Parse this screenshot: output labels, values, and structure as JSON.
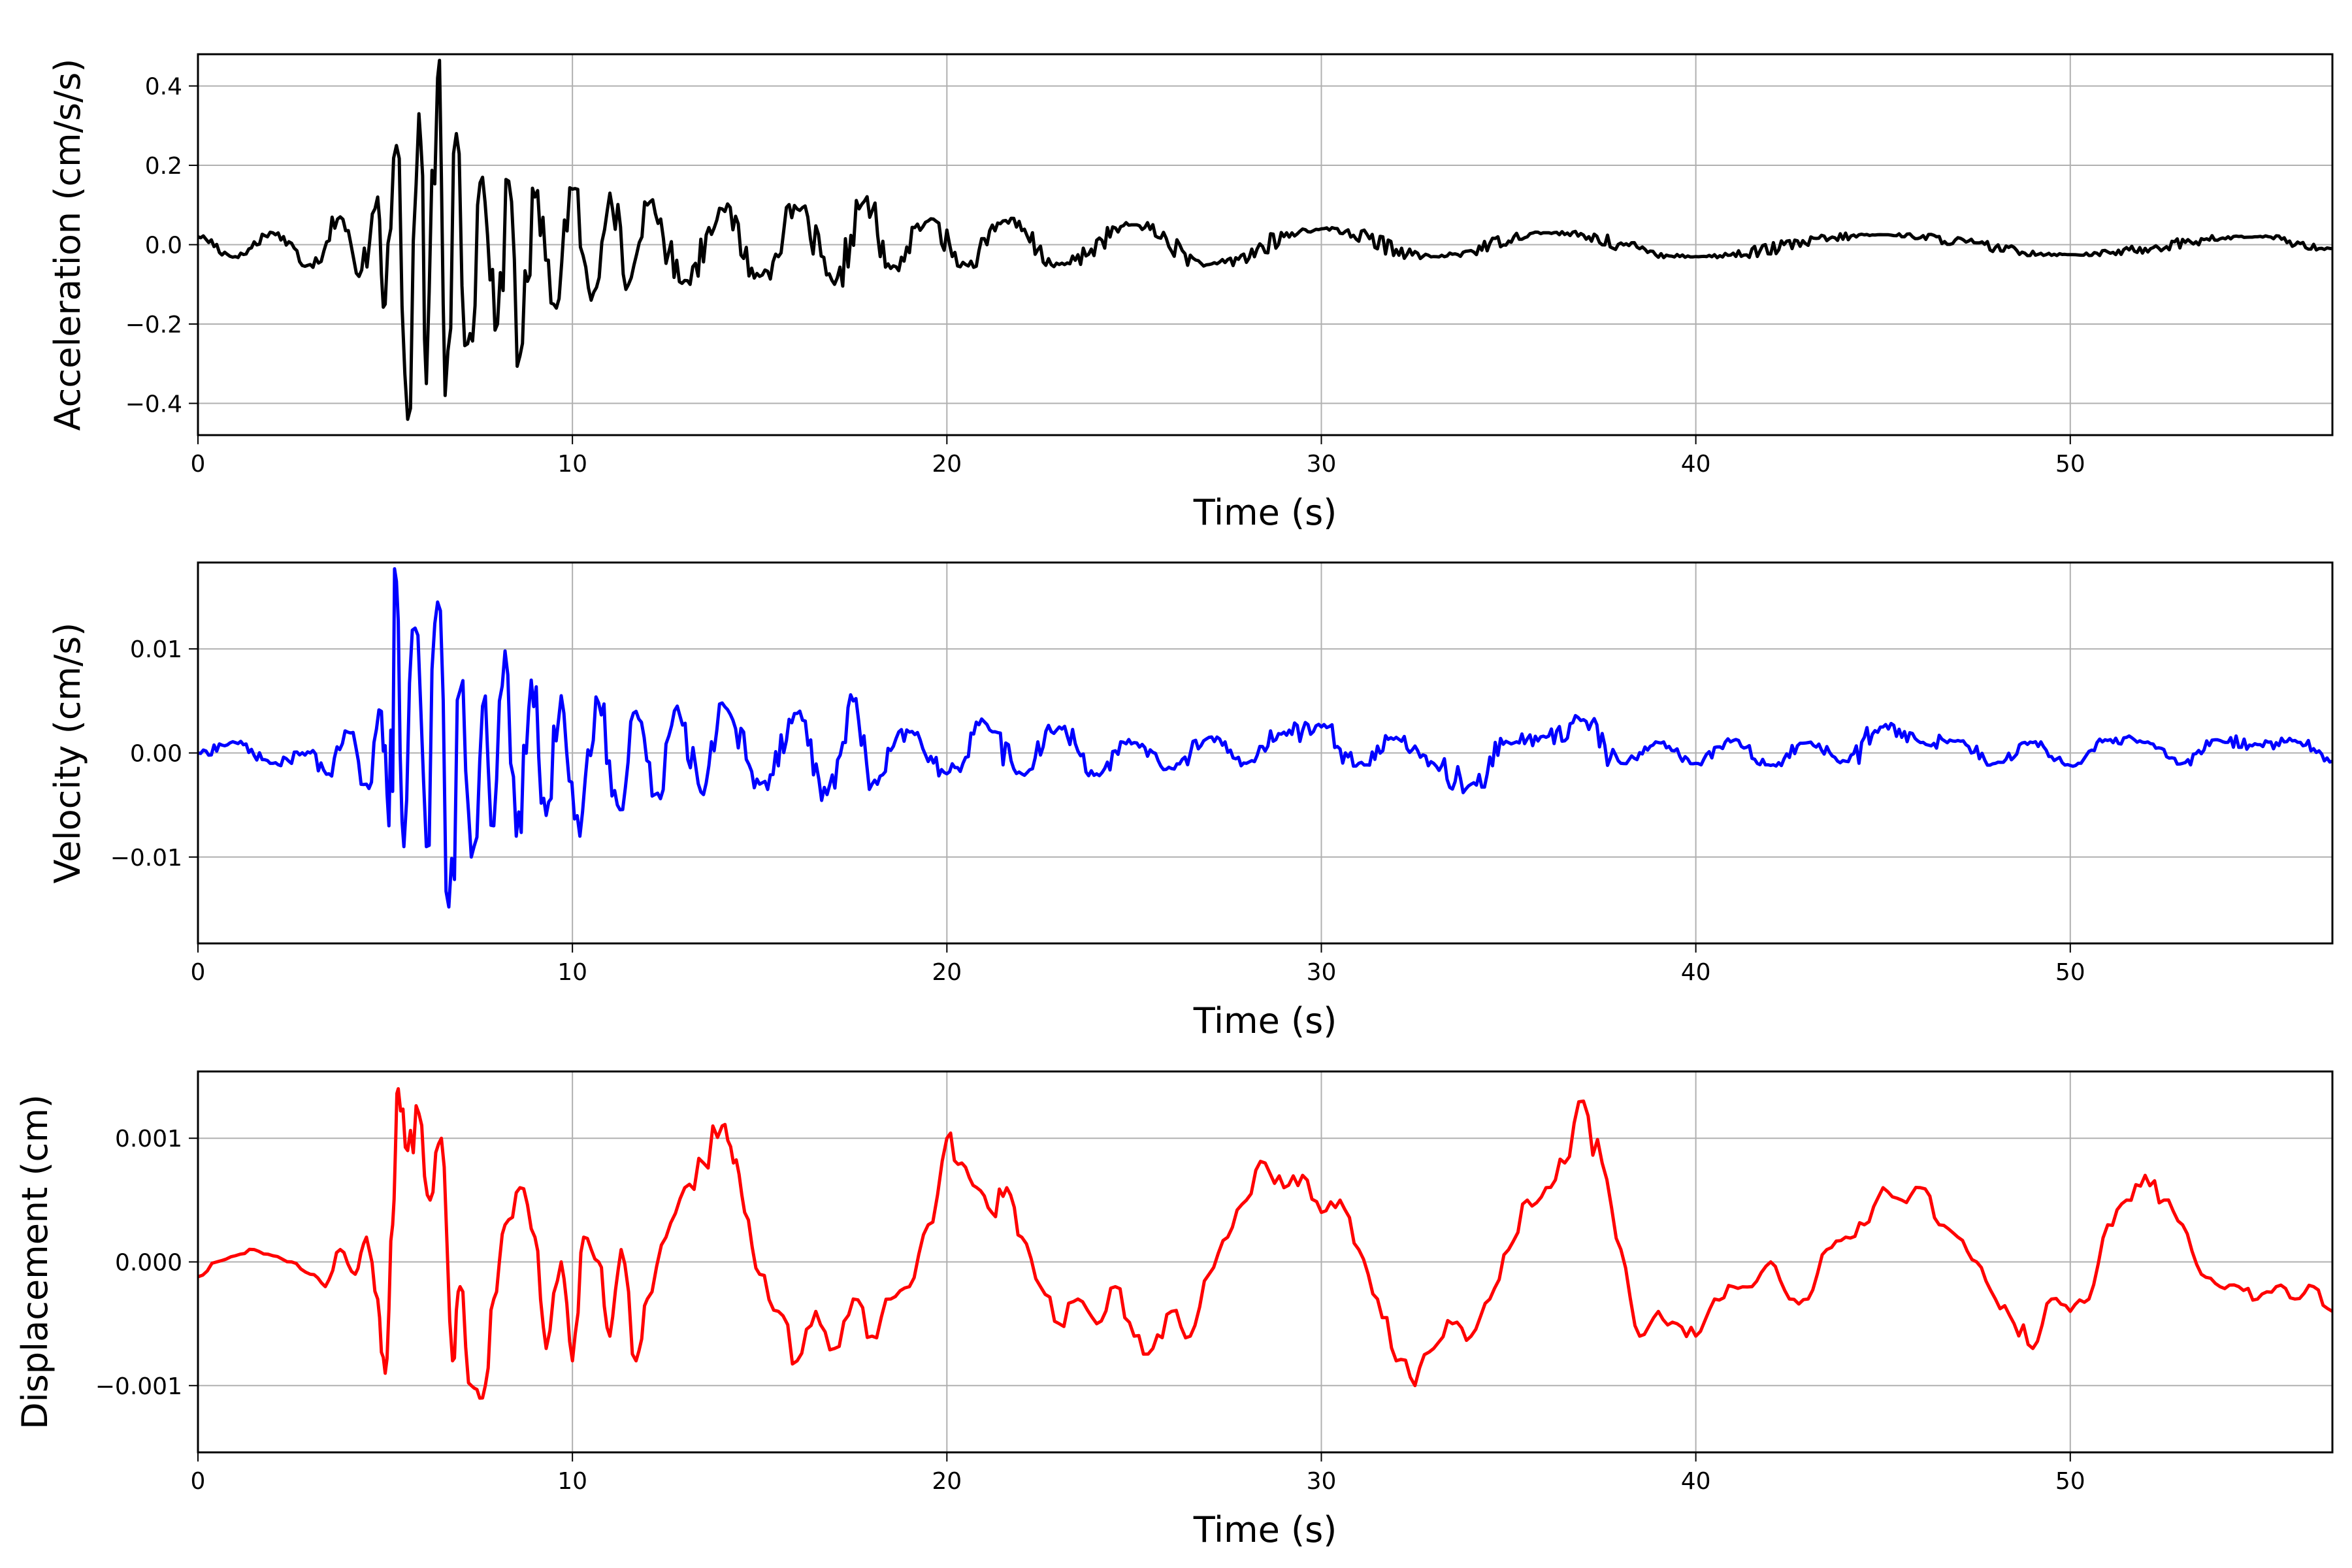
{
  "chart_data": [
    {
      "type": "line",
      "title": "",
      "xlabel": "Time (s)",
      "ylabel": "Acceleration (cm/s/s)",
      "xlim": [
        0,
        57
      ],
      "ylim": [
        -0.48,
        0.48
      ],
      "xticks": [
        0,
        10,
        20,
        30,
        40,
        50
      ],
      "xtick_labels": [
        "0",
        "10",
        "20",
        "30",
        "40",
        "50"
      ],
      "yticks": [
        -0.4,
        -0.2,
        0.0,
        0.2,
        0.4
      ],
      "ytick_labels": [
        "−0.4",
        "−0.2",
        "0.0",
        "0.2",
        "0.4"
      ],
      "grid": true,
      "color": "#000000",
      "series": [
        {
          "x": [
            0,
            1,
            2,
            3,
            3.8,
            4.3,
            4.8,
            5.0,
            5.3,
            5.6,
            5.9,
            6.1,
            6.4,
            6.6,
            6.9,
            7.2,
            7.6,
            8.0,
            8.3,
            8.6,
            9.0,
            9.5,
            10.0,
            10.5,
            11.0,
            11.5,
            12.0,
            13.0,
            14.0,
            15.0,
            16.0,
            17.0,
            17.8,
            18.5,
            19.5,
            20.5,
            21.5,
            23.0,
            25.0,
            27.0,
            30.0,
            33.0,
            36.0,
            40.0,
            45.0,
            50.0,
            55.0,
            57.0
          ],
          "y": [
            0.02,
            -0.03,
            0.03,
            -0.05,
            0.07,
            -0.08,
            0.12,
            -0.15,
            0.25,
            -0.44,
            0.33,
            -0.35,
            0.42,
            -0.38,
            0.28,
            -0.25,
            0.17,
            -0.2,
            0.16,
            -0.28,
            0.12,
            -0.15,
            0.14,
            -0.14,
            0.13,
            -0.1,
            0.1,
            -0.09,
            0.09,
            -0.08,
            0.09,
            -0.1,
            0.11,
            -0.06,
            0.06,
            -0.05,
            0.06,
            -0.05,
            0.05,
            -0.05,
            0.04,
            -0.03,
            0.03,
            -0.03,
            0.025,
            -0.025,
            0.02,
            -0.01
          ]
        }
      ]
    },
    {
      "type": "line",
      "title": "",
      "xlabel": "Time (s)",
      "ylabel": "Velocity (cm/s)",
      "xlim": [
        0,
        57
      ],
      "ylim": [
        -0.0183,
        0.0183
      ],
      "xticks": [
        0,
        10,
        20,
        30,
        40,
        50
      ],
      "xtick_labels": [
        "0",
        "10",
        "20",
        "30",
        "40",
        "50"
      ],
      "yticks": [
        -0.01,
        0.0,
        0.01
      ],
      "ytick_labels": [
        "−0.01",
        "0.00",
        "0.01"
      ],
      "grid": true,
      "color": "#0000ff",
      "series": [
        {
          "x": [
            0,
            1,
            2,
            3,
            3.5,
            4.0,
            4.5,
            4.9,
            5.1,
            5.3,
            5.5,
            5.8,
            6.1,
            6.4,
            6.7,
            7.0,
            7.3,
            7.6,
            7.9,
            8.2,
            8.5,
            8.9,
            9.3,
            9.7,
            10.2,
            10.7,
            11.2,
            11.7,
            12.2,
            12.8,
            13.5,
            14.0,
            15.0,
            16.0,
            16.8,
            17.5,
            18.0,
            19.0,
            20.0,
            21.0,
            22.0,
            23.0,
            24.0,
            25.0,
            26.0,
            27.0,
            28.0,
            29.0,
            30.0,
            31.0,
            32.0,
            33.0,
            34.0,
            35.0,
            36.0,
            37.0,
            38.0,
            39.0,
            40.0,
            41.0,
            42.0,
            43.0,
            44.0,
            45.0,
            46.0,
            47.0,
            48.0,
            49.0,
            50.0,
            51.0,
            52.0,
            53.0,
            54.0,
            55.0,
            56.0,
            57.0
          ],
          "y": [
            0.0,
            0.001,
            -0.001,
            0.0,
            -0.002,
            0.002,
            -0.003,
            0.004,
            -0.007,
            0.0165,
            -0.009,
            0.012,
            -0.009,
            0.0145,
            -0.0148,
            0.006,
            -0.01,
            0.0045,
            -0.007,
            0.0098,
            -0.008,
            0.007,
            -0.006,
            0.0055,
            -0.008,
            0.0048,
            -0.005,
            0.004,
            -0.004,
            0.0045,
            -0.004,
            0.0048,
            -0.003,
            0.0038,
            -0.004,
            0.005,
            -0.003,
            0.002,
            -0.002,
            0.003,
            -0.002,
            0.0025,
            -0.002,
            0.001,
            -0.0015,
            0.0015,
            -0.001,
            0.002,
            0.0025,
            -0.001,
            0.0015,
            -0.001,
            -0.003,
            0.001,
            0.0015,
            0.0032,
            -0.001,
            0.001,
            -0.001,
            0.0012,
            -0.0012,
            0.001,
            -0.0008,
            0.0025,
            0.001,
            0.0012,
            -0.001,
            0.001,
            -0.0012,
            0.0012,
            0.001,
            -0.001,
            0.0012,
            0.0008,
            0.0012,
            -0.0008
          ]
        }
      ]
    },
    {
      "type": "line",
      "title": "",
      "xlabel": "Time (s)",
      "ylabel": "Displacement (cm)",
      "xlim": [
        0,
        57
      ],
      "ylim": [
        -0.00154,
        0.00154
      ],
      "xticks": [
        0,
        10,
        20,
        30,
        40,
        50
      ],
      "xtick_labels": [
        "0",
        "10",
        "20",
        "30",
        "40",
        "50"
      ],
      "yticks": [
        -0.001,
        0.0,
        0.001
      ],
      "ytick_labels": [
        "−0.001",
        "0.000",
        "0.001"
      ],
      "grid": true,
      "color": "#ff0000",
      "series": [
        {
          "x": [
            0,
            0.5,
            1.0,
            1.5,
            2.0,
            2.5,
            3.0,
            3.4,
            3.8,
            4.2,
            4.5,
            4.8,
            5.0,
            5.2,
            5.35,
            5.6,
            5.9,
            6.2,
            6.5,
            6.8,
            7.0,
            7.3,
            7.6,
            7.9,
            8.2,
            8.6,
            9.0,
            9.3,
            9.7,
            10.0,
            10.3,
            10.7,
            11.0,
            11.3,
            11.7,
            12.0,
            12.5,
            13.0,
            13.5,
            14.0,
            14.3,
            14.6,
            15.0,
            15.5,
            16.0,
            16.5,
            17.0,
            17.5,
            18.0,
            18.5,
            19.0,
            19.5,
            20.0,
            20.4,
            20.8,
            21.2,
            21.6,
            22.0,
            22.5,
            23.0,
            23.5,
            24.0,
            24.5,
            25.0,
            25.5,
            26.0,
            26.5,
            27.0,
            27.5,
            28.0,
            28.5,
            29.0,
            29.5,
            30.0,
            30.5,
            31.0,
            31.5,
            32.0,
            32.5,
            33.0,
            33.5,
            34.0,
            34.5,
            35.0,
            35.5,
            36.0,
            36.5,
            37.0,
            37.5,
            38.0,
            38.5,
            39.0,
            39.5,
            40.0,
            40.5,
            41.0,
            41.5,
            42.0,
            42.5,
            43.0,
            43.5,
            44.0,
            44.5,
            45.0,
            45.5,
            46.0,
            46.5,
            47.0,
            47.5,
            48.0,
            48.5,
            49.0,
            49.5,
            50.0,
            50.5,
            51.0,
            51.5,
            52.0,
            52.5,
            53.0,
            53.5,
            54.0,
            54.5,
            55.0,
            55.5,
            56.0,
            56.5,
            57.0
          ],
          "y": [
            -0.00012,
            0.0,
            5e-05,
            0.0001,
            5e-05,
            0.0,
            -0.0001,
            -0.0002,
            0.0001,
            -0.0001,
            0.0002,
            -0.0003,
            -0.0009,
            0.0003,
            0.0014,
            0.0009,
            0.0012,
            0.0005,
            0.001,
            -0.0008,
            -0.0002,
            -0.001,
            -0.0011,
            -0.0003,
            0.0003,
            0.0006,
            0.0002,
            -0.0007,
            0.0,
            -0.0008,
            0.0002,
            0.0,
            -0.0006,
            0.0001,
            -0.0008,
            -0.0003,
            0.0002,
            0.0006,
            0.0008,
            0.0011,
            0.0008,
            0.0004,
            -0.0001,
            -0.0004,
            -0.0008,
            -0.0004,
            -0.0007,
            -0.0003,
            -0.0006,
            -0.0003,
            -0.0002,
            0.0003,
            0.001,
            0.0008,
            0.0006,
            0.0004,
            0.0006,
            0.0002,
            -0.0002,
            -0.0005,
            -0.0003,
            -0.0005,
            -0.0002,
            -0.0006,
            -0.0007,
            -0.0004,
            -0.0006,
            -0.0001,
            0.0002,
            0.0005,
            0.0008,
            0.0006,
            0.0007,
            0.0004,
            0.0005,
            0.0001,
            -0.0003,
            -0.0008,
            -0.001,
            -0.0007,
            -0.0005,
            -0.0006,
            -0.0003,
            0.0001,
            0.0005,
            0.0006,
            0.0008,
            0.0013,
            0.0008,
            0.0001,
            -0.0006,
            -0.0004,
            -0.0005,
            -0.0006,
            -0.0003,
            -0.0002,
            -0.0002,
            0.0,
            -0.0003,
            -0.0003,
            0.0001,
            0.0002,
            0.0003,
            0.0006,
            0.0005,
            0.0006,
            0.0003,
            0.0002,
            0.0,
            -0.0003,
            -0.0005,
            -0.0007,
            -0.0003,
            -0.0004,
            -0.0003,
            0.0003,
            0.0005,
            0.0007,
            0.0005,
            0.0003,
            -0.0001,
            -0.0002,
            -0.0002,
            -0.0003,
            -0.0002,
            -0.0003,
            -0.0002,
            -0.0004
          ]
        }
      ]
    }
  ]
}
